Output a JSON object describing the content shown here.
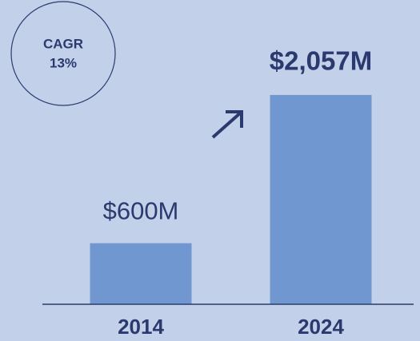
{
  "chart_data": {
    "type": "bar",
    "categories": [
      "2014",
      "2024"
    ],
    "values": [
      600,
      2057
    ],
    "value_labels": [
      "$600M",
      "$2,057M"
    ],
    "color": "#7097cf",
    "ylim": [
      0,
      2700
    ],
    "annotations": [
      "CAGR",
      "13%"
    ]
  }
}
